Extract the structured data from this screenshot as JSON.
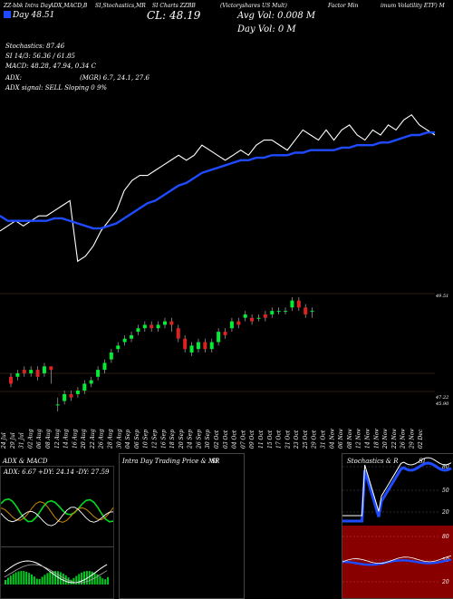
{
  "header": {
    "top_line": [
      "ZZ-bbk Intra Day",
      "ADX,MACD,B",
      "SI,Stochastics,MR",
      "SI Charts ZZBB",
      "(Victoryshares US Mult)",
      "Factor Min",
      "imum Volatility ETF) M"
    ],
    "close_day": "CL: 48.19",
    "day_label": "Day ",
    "day_value": "48.51",
    "avg_vol": "Avg Vol: 0.008  M",
    "day_vol": "Day Vol: 0  M",
    "stochastics": "Stochastics: 87.46",
    "si": "SI 14/3: 56.36 / 61.85",
    "macd": "MACD: 48.28, 47.94, 0.34  C",
    "adx": "ADX:",
    "adx_vals": "(MGR) 6.7, 24.1, 27.6",
    "adx_signal": "ADX  signal: SELL  Sloping 0 9%"
  },
  "price_labels": {
    "top": "49.51",
    "bottom_a": "47.22",
    "bottom_b": "45.90"
  },
  "date_labels": [
    "24 Jul",
    "29 Jul",
    "31 Jul",
    "02 Aug",
    "06 Aug",
    "08 Aug",
    "12 Aug",
    "14 Aug",
    "16 Aug",
    "20 Aug",
    "22 Aug",
    "26 Aug",
    "28 Aug",
    "30 Aug",
    "04 Sep",
    "06 Sep",
    "10 Sep",
    "12 Sep",
    "16 Sep",
    "18 Sep",
    "20 Sep",
    "24 Sep",
    "26 Sep",
    "30 Sep",
    "02 Oct",
    "03 Oct",
    "04 Oct",
    "07 Oct",
    "09 Oct",
    "11 Oct",
    "15 Oct",
    "17 Oct",
    "21 Oct",
    "23 Oct",
    "25 Oct",
    "29 Oct",
    "31 Oct",
    "04 Nov",
    "06 Nov",
    "08 Nov",
    "12 Nov",
    "14 Nov",
    "18 Nov",
    "20 Nov",
    "22 Nov",
    "26 Nov",
    "29 Nov",
    "02 Dec"
  ],
  "panels": {
    "adx_title": "ADX  & MACD",
    "adx_values": "ADX: 6.67  +DY: 24.14  -DY: 27.59",
    "intraday_title": "Intra  Day Trading Price  & MR",
    "intraday_si": "SI",
    "stoch_title": "Stochastics & R",
    "stoch_si": "SI",
    "stoch_ticks": [
      "80",
      "50",
      "20"
    ],
    "mrsi_ticks": [
      "80",
      "50",
      "20"
    ]
  },
  "colors": {
    "up": "#00ee33",
    "down": "#dd2222",
    "ema": "#1e4bff",
    "price_line": "#ffffff",
    "mrsi_bg": "#880000",
    "stoch_line": "#1e4bff",
    "grid": "#5a3820"
  },
  "chart_data": [
    {
      "type": "line",
      "description_of_series": "price line with moving average",
      "series": [
        {
          "values": [
            46.8,
            46.9,
            47.0,
            46.9,
            47.0,
            47.1,
            47.1,
            47.2,
            47.3,
            47.4,
            46.2,
            46.3,
            46.5,
            46.8,
            47.0,
            47.2,
            47.6,
            47.8,
            47.9,
            47.9,
            48.0,
            48.1,
            48.2,
            48.3,
            48.2,
            48.3,
            48.5,
            48.4,
            48.3,
            48.2,
            48.3,
            48.4,
            48.3,
            48.5,
            48.6,
            48.6,
            48.5,
            48.4,
            48.6,
            48.8,
            48.7,
            48.6,
            48.8,
            48.6,
            48.8,
            48.9,
            48.7,
            48.6,
            48.8,
            48.7,
            48.9,
            48.8,
            49.0,
            49.1,
            48.9,
            48.8,
            48.7
          ]
        },
        {
          "values": [
            47.1,
            47.0,
            47.0,
            47.0,
            47.0,
            47.0,
            47.0,
            47.05,
            47.05,
            47.0,
            46.95,
            46.9,
            46.85,
            46.85,
            46.9,
            46.95,
            47.05,
            47.15,
            47.25,
            47.35,
            47.4,
            47.5,
            47.6,
            47.7,
            47.75,
            47.85,
            47.95,
            48.0,
            48.05,
            48.1,
            48.15,
            48.2,
            48.2,
            48.25,
            48.25,
            48.3,
            48.3,
            48.3,
            48.35,
            48.35,
            48.4,
            48.4,
            48.4,
            48.4,
            48.45,
            48.45,
            48.5,
            48.5,
            48.5,
            48.55,
            48.55,
            48.6,
            48.65,
            48.7,
            48.7,
            48.75,
            48.75
          ]
        }
      ]
    },
    {
      "type": "candlestick",
      "candles": [
        {
          "o": 46.6,
          "c": 46.4,
          "h": 46.7,
          "l": 46.3
        },
        {
          "o": 46.6,
          "c": 46.7,
          "h": 46.8,
          "l": 46.5
        },
        {
          "o": 46.8,
          "c": 46.7,
          "h": 46.9,
          "l": 46.6
        },
        {
          "o": 46.7,
          "c": 46.8,
          "h": 46.9,
          "l": 46.6
        },
        {
          "o": 46.8,
          "c": 46.6,
          "h": 46.9,
          "l": 46.5
        },
        {
          "o": 46.7,
          "c": 46.9,
          "h": 47.0,
          "l": 46.6
        },
        {
          "o": 46.9,
          "c": 46.8,
          "h": 46.9,
          "l": 46.4
        },
        {
          "o": 45.8,
          "c": 45.8,
          "h": 46.0,
          "l": 45.6
        },
        {
          "o": 45.9,
          "c": 46.1,
          "h": 46.2,
          "l": 45.8
        },
        {
          "o": 46.1,
          "c": 46.0,
          "h": 46.2,
          "l": 45.9
        },
        {
          "o": 46.1,
          "c": 46.2,
          "h": 46.3,
          "l": 46.0
        },
        {
          "o": 46.2,
          "c": 46.4,
          "h": 46.5,
          "l": 46.1
        },
        {
          "o": 46.4,
          "c": 46.5,
          "h": 46.6,
          "l": 46.3
        },
        {
          "o": 46.6,
          "c": 46.8,
          "h": 46.9,
          "l": 46.5
        },
        {
          "o": 46.8,
          "c": 47.0,
          "h": 47.1,
          "l": 46.7
        },
        {
          "o": 47.1,
          "c": 47.3,
          "h": 47.4,
          "l": 47.0
        },
        {
          "o": 47.4,
          "c": 47.5,
          "h": 47.6,
          "l": 47.3
        },
        {
          "o": 47.6,
          "c": 47.7,
          "h": 47.8,
          "l": 47.5
        },
        {
          "o": 47.7,
          "c": 47.8,
          "h": 47.9,
          "l": 47.6
        },
        {
          "o": 47.9,
          "c": 48.0,
          "h": 48.1,
          "l": 47.8
        },
        {
          "o": 48.0,
          "c": 48.1,
          "h": 48.2,
          "l": 47.9
        },
        {
          "o": 48.1,
          "c": 48.0,
          "h": 48.2,
          "l": 47.9
        },
        {
          "o": 48.0,
          "c": 48.1,
          "h": 48.2,
          "l": 47.9
        },
        {
          "o": 48.1,
          "c": 48.2,
          "h": 48.3,
          "l": 48.0
        },
        {
          "o": 48.2,
          "c": 48.1,
          "h": 48.3,
          "l": 47.9
        },
        {
          "o": 48.0,
          "c": 47.7,
          "h": 48.1,
          "l": 47.6
        },
        {
          "o": 47.7,
          "c": 47.4,
          "h": 47.8,
          "l": 47.3
        },
        {
          "o": 47.3,
          "c": 47.5,
          "h": 47.6,
          "l": 47.2
        },
        {
          "o": 47.4,
          "c": 47.6,
          "h": 47.7,
          "l": 47.3
        },
        {
          "o": 47.6,
          "c": 47.4,
          "h": 47.7,
          "l": 47.3
        },
        {
          "o": 47.4,
          "c": 47.6,
          "h": 47.7,
          "l": 47.3
        },
        {
          "o": 47.6,
          "c": 47.9,
          "h": 48.0,
          "l": 47.5
        },
        {
          "o": 47.9,
          "c": 47.8,
          "h": 48.0,
          "l": 47.7
        },
        {
          "o": 48.0,
          "c": 48.2,
          "h": 48.3,
          "l": 47.9
        },
        {
          "o": 48.2,
          "c": 48.1,
          "h": 48.3,
          "l": 48.0
        },
        {
          "o": 48.3,
          "c": 48.4,
          "h": 48.5,
          "l": 48.2
        },
        {
          "o": 48.3,
          "c": 48.2,
          "h": 48.4,
          "l": 48.1
        },
        {
          "o": 48.3,
          "c": 48.3,
          "h": 48.4,
          "l": 48.2
        },
        {
          "o": 48.4,
          "c": 48.3,
          "h": 48.5,
          "l": 48.2
        },
        {
          "o": 48.4,
          "c": 48.5,
          "h": 48.6,
          "l": 48.3
        },
        {
          "o": 48.5,
          "c": 48.5,
          "h": 48.6,
          "l": 48.4
        },
        {
          "o": 48.5,
          "c": 48.5,
          "h": 48.6,
          "l": 48.4
        },
        {
          "o": 48.6,
          "c": 48.8,
          "h": 48.9,
          "l": 48.5
        },
        {
          "o": 48.8,
          "c": 48.6,
          "h": 48.9,
          "l": 48.5
        },
        {
          "o": 48.6,
          "c": 48.4,
          "h": 48.7,
          "l": 48.3
        },
        {
          "o": 48.5,
          "c": 48.5,
          "h": 48.6,
          "l": 48.3
        }
      ],
      "y_labels": [
        "49.51",
        "47.22",
        "45.90"
      ]
    }
  ]
}
